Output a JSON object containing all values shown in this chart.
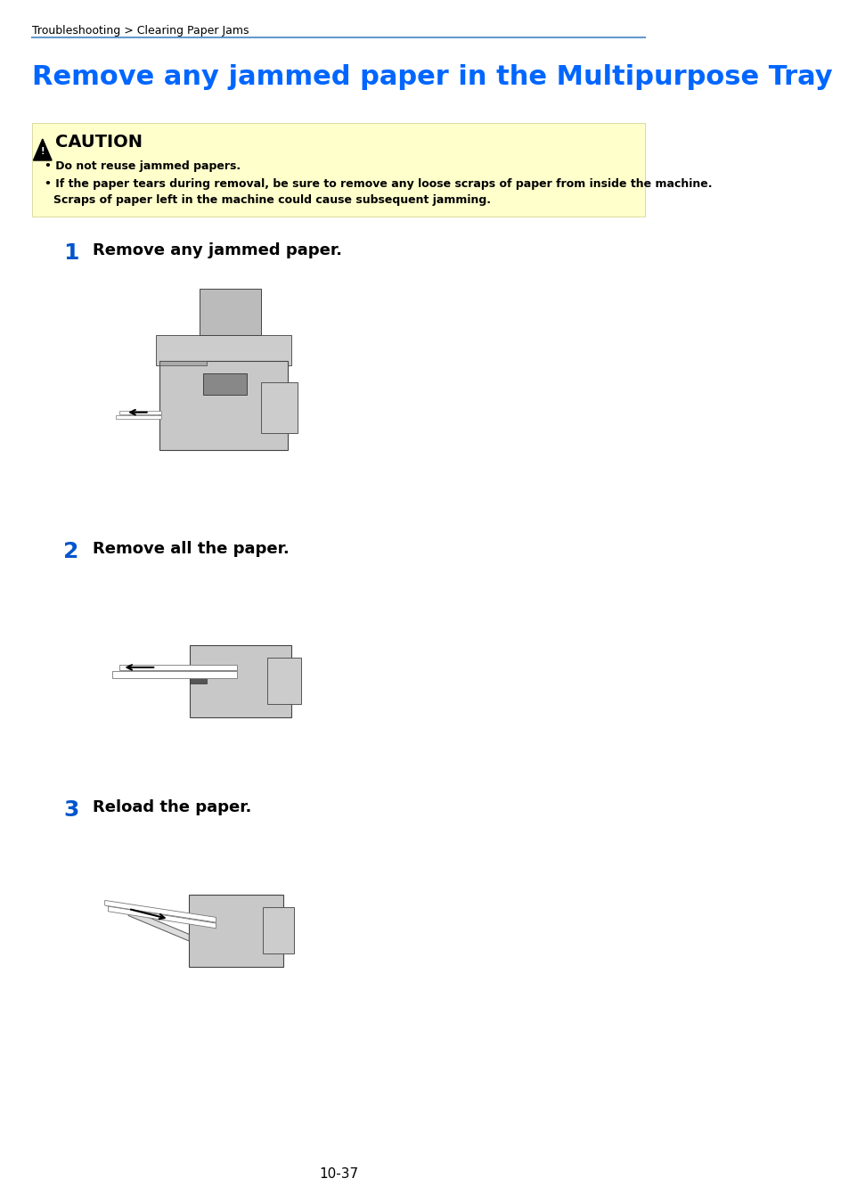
{
  "page_width": 9.54,
  "page_height": 13.5,
  "bg_color": "#ffffff",
  "breadcrumb": "Troubleshooting > Clearing Paper Jams",
  "breadcrumb_color": "#000000",
  "breadcrumb_fontsize": 9,
  "separator_color": "#6699cc",
  "title": "Remove any jammed paper in the Multipurpose Tray",
  "title_color": "#0066ff",
  "title_fontsize": 22,
  "caution_bg": "#ffffcc",
  "caution_border": "#cccc88",
  "caution_title": "CAUTION",
  "caution_bullet1": "Do not reuse jammed papers.",
  "caution_bullet2_line1": "If the paper tears during removal, be sure to remove any loose scraps of paper from inside the machine.",
  "caution_bullet2_line2": "Scraps of paper left in the machine could cause subsequent jamming.",
  "step1_num": "1",
  "step1_text": "Remove any jammed paper.",
  "step2_num": "2",
  "step2_text": "Remove all the paper.",
  "step3_num": "3",
  "step3_text": "Reload the paper.",
  "step_num_color": "#0055cc",
  "step_text_color": "#000000",
  "step_fontsize": 13,
  "step_num_fontsize": 18,
  "footer": "10-37",
  "footer_color": "#000000",
  "footer_fontsize": 11
}
